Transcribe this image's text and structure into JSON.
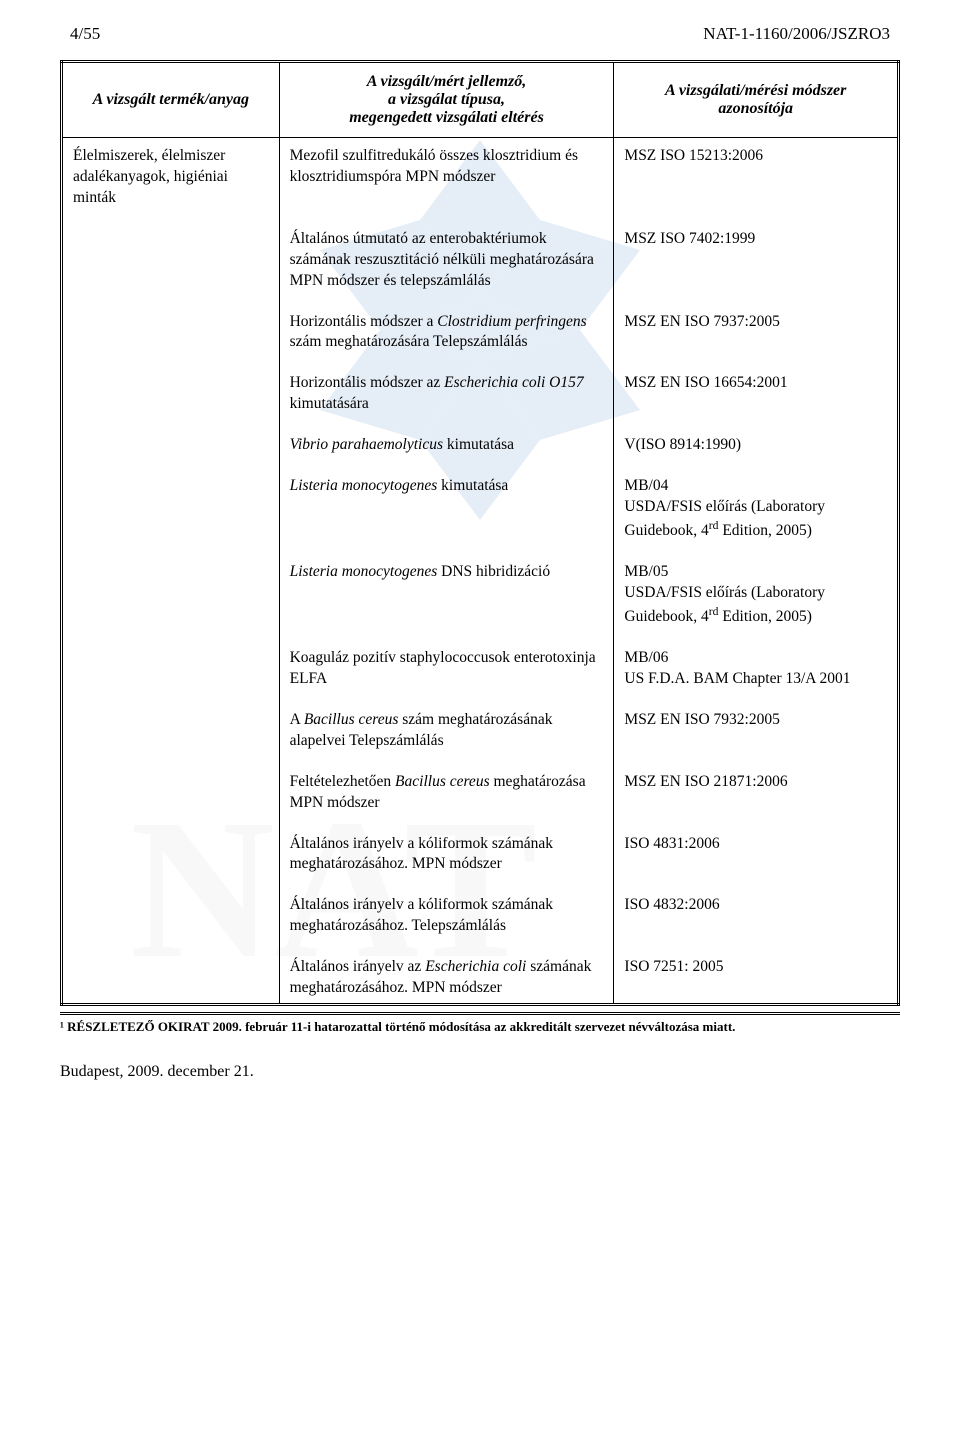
{
  "header": {
    "page_num": "4/55",
    "doc_code": "NAT-1-1160/2006/JSZRO3"
  },
  "table": {
    "col_headers": {
      "a": "A vizsgált termék/anyag",
      "b_line1": "A vizsgált/mért jellemző,",
      "b_line2": "a vizsgálat típusa,",
      "b_line3": "megengedett vizsgálati eltérés",
      "c_line1": "A vizsgálati/mérési módszer",
      "c_line2": "azonosítója"
    },
    "product": {
      "line1": "Élelmiszerek, élelmiszer",
      "line2": "adalékanyagok, higiéniai minták"
    },
    "rows": [
      {
        "b": "Mezofil szulfitredukáló összes klosztridium és klosztridiumspóra MPN módszer",
        "c": "MSZ ISO 15213:2006"
      },
      {
        "b": "Általános útmutató az enterobaktériumok számának reszusztitáció nélküli meghatározására MPN módszer és telepszámlálás",
        "c": "MSZ ISO 7402:1999"
      },
      {
        "b_html": "Horizontális módszer a <em class='sci'>Clostridium perfringens</em> szám meghatározására Telepszámlálás",
        "c": "MSZ EN ISO 7937:2005"
      },
      {
        "b_html": "Horizontális módszer az <em class='sci'>Escherichia coli O157</em> kimutatására",
        "c": "MSZ EN ISO 16654:2001"
      },
      {
        "b_html": "<em class='sci'>Vibrio parahaemolyticus</em> kimutatása",
        "c": "V(ISO 8914:1990)"
      },
      {
        "b_html": "<em class='sci'>Listeria monocytogenes</em> kimutatása",
        "c_html": "MB/04<br>USDA/FSIS előírás (Laboratory Guidebook, 4<sup>rd</sup> Edition, 2005)"
      },
      {
        "b_html": "<em class='sci'>Listeria monocytogenes</em> DNS hibridizáció",
        "c_html": "MB/05<br>USDA/FSIS előírás (Laboratory Guidebook, 4<sup>rd</sup> Edition, 2005)"
      },
      {
        "b": "Koaguláz pozitív staphylococcusok enterotoxinja ELFA",
        "c_html": "MB/06<br>US F.D.A. BAM Chapter 13/A 2001"
      },
      {
        "b_html": "A <em class='sci'>Bacillus cereus</em> szám meghatározásának alapelvei Telepszámlálás",
        "c": "MSZ EN ISO 7932:2005"
      },
      {
        "b_html": "Feltételezhetően <em class='sci'>Bacillus cereus</em> meghatározása MPN módszer",
        "c": "MSZ EN ISO 21871:2006"
      },
      {
        "b": "Általános irányelv a kóliformok számának meghatározásához. MPN módszer",
        "c": "ISO 4831:2006"
      },
      {
        "b": "Általános irányelv a kóliformok számának meghatározásához. Telepszámlálás",
        "c": "ISO 4832:2006"
      },
      {
        "b_html": "Általános irányelv az <em class='sci'>Escherichia coli</em> számának meghatározásához. MPN módszer",
        "c": "ISO 7251: 2005"
      }
    ]
  },
  "footnote": "¹ RÉSZLETEZŐ OKIRAT 2009. február 11-i hatarozattal történő módosítása az akkreditált szervezet névváltozása miatt.",
  "footer_date": "Budapest, 2009. december 21."
}
